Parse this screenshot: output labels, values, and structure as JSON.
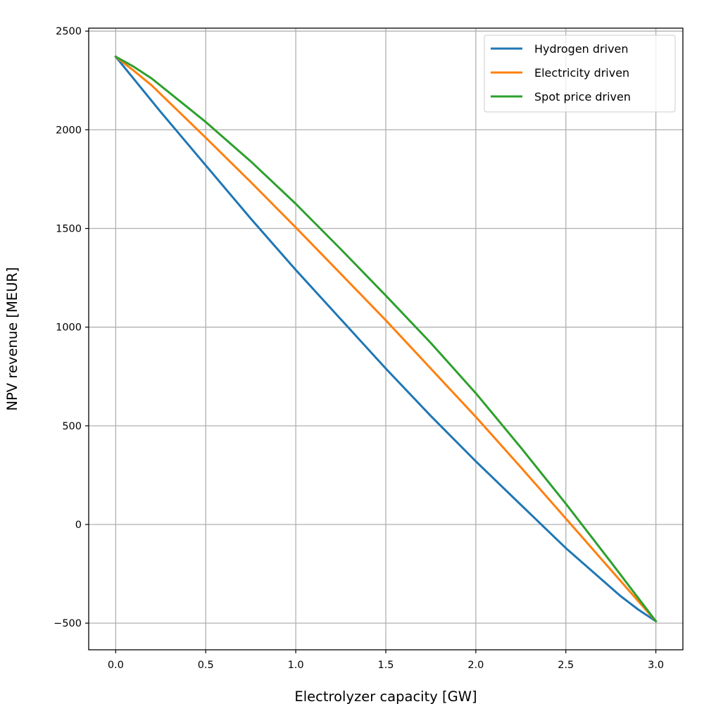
{
  "chart_data": {
    "type": "line",
    "xlabel": "Electrolyzer capacity [GW]",
    "ylabel": "NPV revenue [MEUR]",
    "xlim": [
      -0.15,
      3.15
    ],
    "ylim": [
      -635,
      2515
    ],
    "xticks": [
      0.0,
      0.5,
      1.0,
      1.5,
      2.0,
      2.5,
      3.0
    ],
    "xtick_labels": [
      "0.0",
      "0.5",
      "1.0",
      "1.5",
      "2.0",
      "2.5",
      "3.0"
    ],
    "yticks": [
      -500,
      0,
      500,
      1000,
      1500,
      2000,
      2500
    ],
    "ytick_labels": [
      "−500",
      "0",
      "500",
      "1000",
      "1500",
      "2000",
      "2500"
    ],
    "grid": true,
    "legend_position": "top-right",
    "series": [
      {
        "name": "Hydrogen driven",
        "color": "#1f77b4",
        "x": [
          0,
          0.25,
          0.5,
          0.75,
          1.0,
          1.25,
          1.5,
          1.75,
          2.0,
          2.25,
          2.5,
          2.8,
          2.9,
          3.0
        ],
        "y": [
          2370,
          2090,
          1820,
          1550,
          1290,
          1040,
          790,
          550,
          320,
          100,
          -120,
          -360,
          -430,
          -490
        ]
      },
      {
        "name": "Electricity driven",
        "color": "#ff7f0e",
        "x": [
          0,
          0.1,
          0.2,
          0.5,
          0.75,
          1.0,
          1.25,
          1.5,
          1.75,
          2.0,
          2.25,
          2.5,
          2.75,
          3.0
        ],
        "y": [
          2370,
          2300,
          2225,
          1960,
          1735,
          1505,
          1270,
          1035,
          790,
          545,
          290,
          30,
          -230,
          -490
        ]
      },
      {
        "name": "Spot price driven",
        "color": "#2ca02c",
        "x": [
          0,
          0.1,
          0.2,
          0.5,
          0.75,
          1.0,
          1.25,
          1.5,
          1.75,
          2.0,
          2.25,
          2.5,
          2.75,
          3.0
        ],
        "y": [
          2370,
          2320,
          2260,
          2040,
          1840,
          1625,
          1395,
          1160,
          920,
          665,
          390,
          105,
          -190,
          -490
        ]
      }
    ]
  }
}
